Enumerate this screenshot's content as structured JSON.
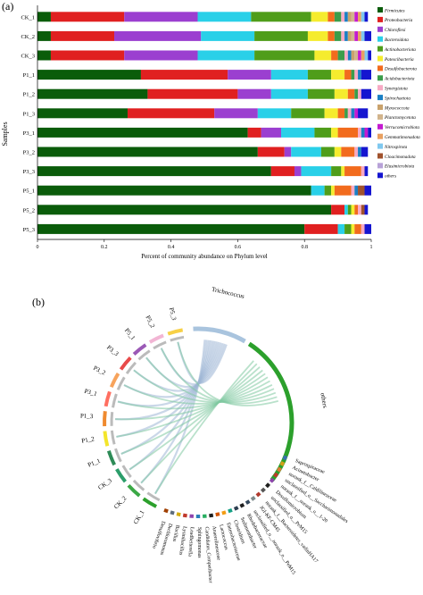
{
  "panel_a": {
    "label": "(a)",
    "chart_data": {
      "type": "bar",
      "orientation": "horizontal",
      "stacked": true,
      "categories": [
        "CK_1",
        "CK_2",
        "CK_3",
        "P1_1",
        "P1_2",
        "P1_3",
        "P3_1",
        "P3_2",
        "P3_3",
        "P5_1",
        "P5_2",
        "P5_3"
      ],
      "series": [
        {
          "name": "Firmicutes",
          "color": "#0a5c0a",
          "values": [
            0.04,
            0.04,
            0.04,
            0.31,
            0.33,
            0.27,
            0.63,
            0.66,
            0.7,
            0.82,
            0.88,
            0.8
          ]
        },
        {
          "name": "Proteobacteria",
          "color": "#e02020",
          "values": [
            0.22,
            0.19,
            0.22,
            0.26,
            0.27,
            0.26,
            0.04,
            0.08,
            0.07,
            0.0,
            0.04,
            0.1
          ]
        },
        {
          "name": "Chloroflexi",
          "color": "#9b3fd0",
          "values": [
            0.22,
            0.26,
            0.22,
            0.13,
            0.1,
            0.13,
            0.06,
            0.02,
            0.02,
            0.0,
            0.0,
            0.0
          ]
        },
        {
          "name": "Bacteroidota",
          "color": "#29d0e8",
          "values": [
            0.16,
            0.16,
            0.17,
            0.11,
            0.11,
            0.1,
            0.1,
            0.09,
            0.09,
            0.04,
            0.01,
            0.02
          ]
        },
        {
          "name": "Actinobacteriota",
          "color": "#4f9d1a",
          "values": [
            0.18,
            0.16,
            0.18,
            0.07,
            0.08,
            0.1,
            0.05,
            0.04,
            0.03,
            0.02,
            0.01,
            0.02
          ]
        },
        {
          "name": "Patescibacteria",
          "color": "#f5ec2e",
          "values": [
            0.05,
            0.06,
            0.05,
            0.04,
            0.04,
            0.04,
            0.02,
            0.02,
            0.01,
            0.01,
            0.01,
            0.01
          ]
        },
        {
          "name": "Desulfobacterota",
          "color": "#f26b1d",
          "values": [
            0.02,
            0.02,
            0.02,
            0.02,
            0.02,
            0.02,
            0.06,
            0.04,
            0.05,
            0.05,
            0.01,
            0.02
          ]
        },
        {
          "name": "Acidobacteriota",
          "color": "#3b9d4a",
          "values": [
            0.02,
            0.02,
            0.02,
            0.01,
            0.01,
            0.01,
            0.0,
            0.0,
            0.0,
            0.0,
            0.0,
            0.0
          ]
        },
        {
          "name": "Synergistota",
          "color": "#f7a9c4",
          "values": [
            0.01,
            0.01,
            0.01,
            0.01,
            0.01,
            0.01,
            0.01,
            0.01,
            0.01,
            0.01,
            0.01,
            0.01
          ]
        },
        {
          "name": "Spirochaetota",
          "color": "#1a7fc4",
          "values": [
            0.01,
            0.01,
            0.01,
            0.01,
            0.0,
            0.01,
            0.01,
            0.01,
            0.0,
            0.01,
            0.0,
            0.0
          ]
        },
        {
          "name": "Myxococcota",
          "color": "#c9a26c",
          "values": [
            0.01,
            0.01,
            0.01,
            0.0,
            0.0,
            0.0,
            0.0,
            0.0,
            0.0,
            0.0,
            0.0,
            0.0
          ]
        },
        {
          "name": "Planctomycetota",
          "color": "#d2b48c",
          "values": [
            0.01,
            0.01,
            0.01,
            0.0,
            0.0,
            0.0,
            0.0,
            0.0,
            0.0,
            0.0,
            0.0,
            0.0
          ]
        },
        {
          "name": "Verrucomicrobiota",
          "color": "#c41ad0",
          "values": [
            0.01,
            0.01,
            0.01,
            0.0,
            0.0,
            0.01,
            0.01,
            0.0,
            0.0,
            0.0,
            0.0,
            0.0
          ]
        },
        {
          "name": "Gemmatimonadota",
          "color": "#e8a060",
          "values": [
            0.01,
            0.01,
            0.01,
            0.0,
            0.0,
            0.0,
            0.0,
            0.0,
            0.0,
            0.0,
            0.0,
            0.0
          ]
        },
        {
          "name": "Nitrospirota",
          "color": "#7fc8ef",
          "values": [
            0.01,
            0.01,
            0.01,
            0.0,
            0.0,
            0.0,
            0.0,
            0.0,
            0.0,
            0.0,
            0.0,
            0.0
          ]
        },
        {
          "name": "Cloacimonadota",
          "color": "#a0522d",
          "values": [
            0.0,
            0.0,
            0.0,
            0.0,
            0.0,
            0.0,
            0.0,
            0.0,
            0.0,
            0.02,
            0.01,
            0.0
          ]
        },
        {
          "name": "Elusimicrobiota",
          "color": "#b8a2d8",
          "values": [
            0.0,
            0.0,
            0.0,
            0.0,
            0.0,
            0.0,
            0.0,
            0.0,
            0.0,
            0.0,
            0.0,
            0.0
          ]
        },
        {
          "name": "others",
          "color": "#1515d0",
          "values": [
            0.01,
            0.02,
            0.01,
            0.03,
            0.03,
            0.03,
            0.01,
            0.02,
            0.01,
            0.02,
            0.01,
            0.02
          ]
        }
      ],
      "xlim": [
        0,
        1
      ],
      "xticks": [
        "0",
        "0.2",
        "0.4",
        "0.6",
        "0.8",
        "1"
      ],
      "xlabel": "Percent of community abundance on Phylum level",
      "ylabel": "Samples",
      "legend_position": "right"
    }
  },
  "panel_b": {
    "label": "(b)",
    "chart_data": {
      "type": "chord",
      "sample_segments": [
        {
          "name": "CK_1",
          "color": "#2ca02c"
        },
        {
          "name": "CK_2",
          "color": "#3aa845"
        },
        {
          "name": "CK_3",
          "color": "#2b9d6a"
        },
        {
          "name": "P1_1",
          "color": "#2e8b57"
        },
        {
          "name": "P1_2",
          "color": "#f3e52b"
        },
        {
          "name": "P1_3",
          "color": "#ef8a2f"
        },
        {
          "name": "P3_1",
          "color": "#ff6f61"
        },
        {
          "name": "P3_2",
          "color": "#f7a35c"
        },
        {
          "name": "P3_3",
          "color": "#e84a4a"
        },
        {
          "name": "P5_1",
          "color": "#9b59b6"
        },
        {
          "name": "P5_2",
          "color": "#f2b5d4"
        },
        {
          "name": "P5_3",
          "color": "#f7d046"
        }
      ],
      "taxa_segments": [
        {
          "name": "Trichococcus",
          "color": "#a9c4de"
        },
        {
          "name": "others",
          "color": "#2ca02c"
        },
        {
          "name": "Saprospiraceae",
          "color": "#3a6fb0"
        },
        {
          "name": "Acinetobacter",
          "color": "#d4a017"
        },
        {
          "name": "norank_f__Caldilineaceae",
          "color": "#e07b39"
        },
        {
          "name": "unclassified_o__Saccharimonadales",
          "color": "#c0392b"
        },
        {
          "name": "norank_f__norank_o__1-20",
          "color": "#8e44ad"
        },
        {
          "name": "Desulfomicrobium",
          "color": "#1f1f1f"
        },
        {
          "name": "unclassified_o__PeM15",
          "color": "#555555"
        },
        {
          "name": "norank_f__Bacteroidetes_vadinHA17",
          "color": "#b03a2e"
        },
        {
          "name": "JGI-KF-CM45",
          "color": "#7f8c8d"
        },
        {
          "name": "unclassified_o__norank_o__PeM15",
          "color": "#34495e"
        },
        {
          "name": "Rhodobacteraceae",
          "color": "#1f1f1f"
        },
        {
          "name": "Sedimentibacter",
          "color": "#2c3e50"
        },
        {
          "name": "Clostridium",
          "color": "#16a085"
        },
        {
          "name": "Enterobacteriaceae",
          "color": "#f39c12"
        },
        {
          "name": "Lactococcus",
          "color": "#d35400"
        },
        {
          "name": "Anaerolineaceae",
          "color": "#1f1f1f"
        },
        {
          "name": "Candidatus_Competibacter",
          "color": "#27ae60"
        },
        {
          "name": "Sphingomonas",
          "color": "#2980b9"
        },
        {
          "name": "Leadbetterella",
          "color": "#8e44ad"
        },
        {
          "name": "Lysinibacillus",
          "color": "#c0392b"
        },
        {
          "name": "Bacillus",
          "color": "#d4ac0d"
        },
        {
          "name": "Dechloromonas",
          "color": "#5d6d7e"
        },
        {
          "name": "Desulfovibrio",
          "color": "#a04000"
        }
      ]
    }
  }
}
